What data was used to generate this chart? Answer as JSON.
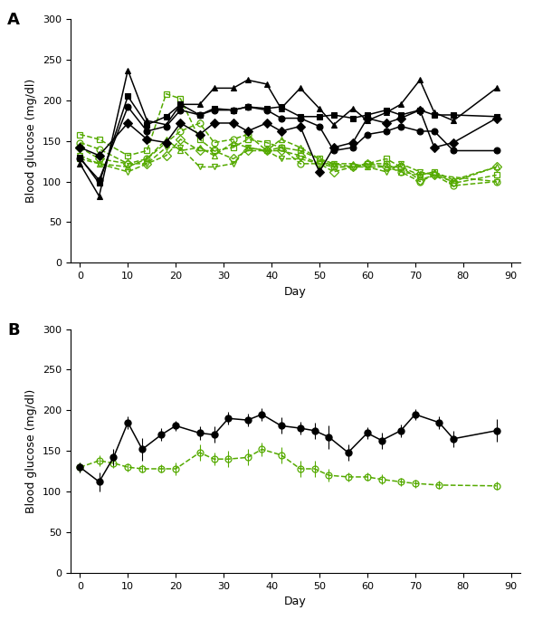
{
  "panel_A_label": "A",
  "panel_B_label": "B",
  "ylabel": "Blood glucose (mg/dl)",
  "xlabel": "Day",
  "ylim": [
    0,
    300
  ],
  "yticks": [
    0,
    50,
    100,
    150,
    200,
    250,
    300
  ],
  "xlim": [
    -2,
    92
  ],
  "xticks": [
    0,
    10,
    20,
    30,
    40,
    50,
    60,
    70,
    80,
    90
  ],
  "black_color": "#000000",
  "green_color": "#55AA00",
  "black_lines": [
    {
      "days": [
        0,
        4,
        10,
        14,
        18,
        21,
        25,
        28,
        32,
        35,
        39,
        42,
        46,
        50,
        53,
        57,
        60,
        64,
        67,
        71,
        74,
        78,
        87
      ],
      "values": [
        122,
        82,
        237,
        175,
        170,
        195,
        195,
        215,
        215,
        225,
        220,
        190,
        215,
        190,
        170,
        190,
        175,
        185,
        195,
        225,
        185,
        175,
        215
      ],
      "marker": "^",
      "filled": true
    },
    {
      "days": [
        0,
        4,
        10,
        14,
        18,
        21,
        25,
        28,
        32,
        35,
        39,
        42,
        46,
        50,
        53,
        57,
        60,
        64,
        67,
        71,
        74,
        78,
        87
      ],
      "values": [
        130,
        98,
        205,
        170,
        180,
        195,
        182,
        190,
        188,
        192,
        190,
        192,
        180,
        180,
        182,
        178,
        182,
        188,
        182,
        188,
        182,
        182,
        180
      ],
      "marker": "s",
      "filled": true
    },
    {
      "days": [
        0,
        4,
        10,
        14,
        18,
        21,
        25,
        28,
        32,
        35,
        39,
        42,
        46,
        50,
        53,
        57,
        60,
        64,
        67,
        71,
        74,
        78,
        87
      ],
      "values": [
        128,
        102,
        192,
        162,
        168,
        188,
        182,
        188,
        188,
        192,
        188,
        178,
        178,
        168,
        138,
        142,
        158,
        162,
        168,
        162,
        162,
        138,
        138
      ],
      "marker": "o",
      "filled": true
    },
    {
      "days": [
        0,
        4,
        10,
        14,
        18,
        21,
        25,
        28,
        32,
        35,
        39,
        42,
        46,
        50,
        53,
        57,
        60,
        64,
        67,
        71,
        74,
        78,
        87
      ],
      "values": [
        142,
        132,
        172,
        152,
        148,
        172,
        158,
        172,
        172,
        162,
        172,
        162,
        168,
        112,
        142,
        148,
        178,
        172,
        178,
        188,
        142,
        148,
        178
      ],
      "marker": "D",
      "filled": true
    }
  ],
  "green_lines": [
    {
      "days": [
        0,
        4,
        10,
        14,
        18,
        21,
        25,
        28,
        32,
        35,
        39,
        42,
        46,
        50,
        53,
        57,
        60,
        64,
        67,
        71,
        74,
        78,
        87
      ],
      "values": [
        158,
        152,
        132,
        138,
        208,
        202,
        152,
        138,
        142,
        152,
        148,
        142,
        138,
        128,
        118,
        118,
        122,
        128,
        118,
        108,
        112,
        98,
        108
      ],
      "marker": "s",
      "filled": false
    },
    {
      "days": [
        0,
        4,
        10,
        14,
        18,
        21,
        25,
        28,
        32,
        35,
        39,
        42,
        46,
        50,
        53,
        57,
        60,
        64,
        67,
        71,
        74,
        78,
        87
      ],
      "values": [
        148,
        140,
        122,
        128,
        148,
        162,
        172,
        148,
        152,
        158,
        138,
        142,
        122,
        122,
        118,
        118,
        122,
        122,
        112,
        100,
        108,
        95,
        100
      ],
      "marker": "o",
      "filled": false
    },
    {
      "days": [
        0,
        4,
        10,
        14,
        18,
        21,
        25,
        28,
        32,
        35,
        39,
        42,
        46,
        50,
        53,
        57,
        60,
        64,
        67,
        71,
        74,
        78,
        87
      ],
      "values": [
        142,
        128,
        122,
        122,
        132,
        152,
        138,
        138,
        128,
        138,
        138,
        138,
        132,
        122,
        112,
        118,
        122,
        118,
        118,
        102,
        108,
        100,
        118
      ],
      "marker": "D",
      "filled": false
    },
    {
      "days": [
        0,
        4,
        10,
        14,
        18,
        21,
        25,
        28,
        32,
        35,
        39,
        42,
        46,
        50,
        53,
        57,
        60,
        64,
        67,
        71,
        74,
        78,
        87
      ],
      "values": [
        128,
        122,
        118,
        128,
        152,
        138,
        142,
        132,
        148,
        142,
        138,
        152,
        142,
        128,
        122,
        122,
        118,
        118,
        112,
        108,
        112,
        102,
        118
      ],
      "marker": "^",
      "filled": false
    },
    {
      "days": [
        0,
        4,
        10,
        14,
        18,
        21,
        25,
        28,
        32,
        35,
        39,
        42,
        46,
        50,
        53,
        57,
        60,
        64,
        67,
        71,
        74,
        87
      ],
      "values": [
        132,
        122,
        112,
        122,
        142,
        142,
        118,
        118,
        122,
        142,
        138,
        128,
        128,
        122,
        122,
        118,
        118,
        112,
        122,
        112,
        108,
        100
      ],
      "marker": "v",
      "filled": false
    }
  ],
  "panel_B_black_days": [
    0,
    4,
    7,
    10,
    13,
    17,
    20,
    25,
    28,
    31,
    35,
    38,
    42,
    46,
    49,
    52,
    56,
    60,
    63,
    67,
    70,
    75,
    78,
    87
  ],
  "panel_B_black_mean": [
    130,
    112,
    142,
    185,
    152,
    170,
    181,
    172,
    170,
    190,
    188,
    195,
    181,
    178,
    175,
    167,
    148,
    172,
    163,
    175,
    195,
    185,
    165,
    175
  ],
  "panel_B_black_sem": [
    6,
    12,
    10,
    8,
    14,
    8,
    6,
    8,
    10,
    8,
    8,
    8,
    10,
    8,
    10,
    14,
    10,
    7,
    10,
    8,
    7,
    8,
    10,
    14
  ],
  "panel_B_green_days": [
    0,
    4,
    7,
    10,
    13,
    17,
    20,
    25,
    28,
    31,
    35,
    38,
    42,
    46,
    49,
    52,
    56,
    60,
    63,
    67,
    70,
    75,
    87
  ],
  "panel_B_green_mean": [
    130,
    138,
    135,
    130,
    128,
    128,
    128,
    148,
    140,
    140,
    142,
    152,
    145,
    128,
    128,
    120,
    118,
    118,
    115,
    112,
    110,
    108,
    107
  ],
  "panel_B_green_sem": [
    6,
    7,
    6,
    5,
    5,
    5,
    8,
    10,
    8,
    10,
    10,
    8,
    10,
    10,
    10,
    8,
    6,
    5,
    6,
    5,
    5,
    5,
    5
  ]
}
